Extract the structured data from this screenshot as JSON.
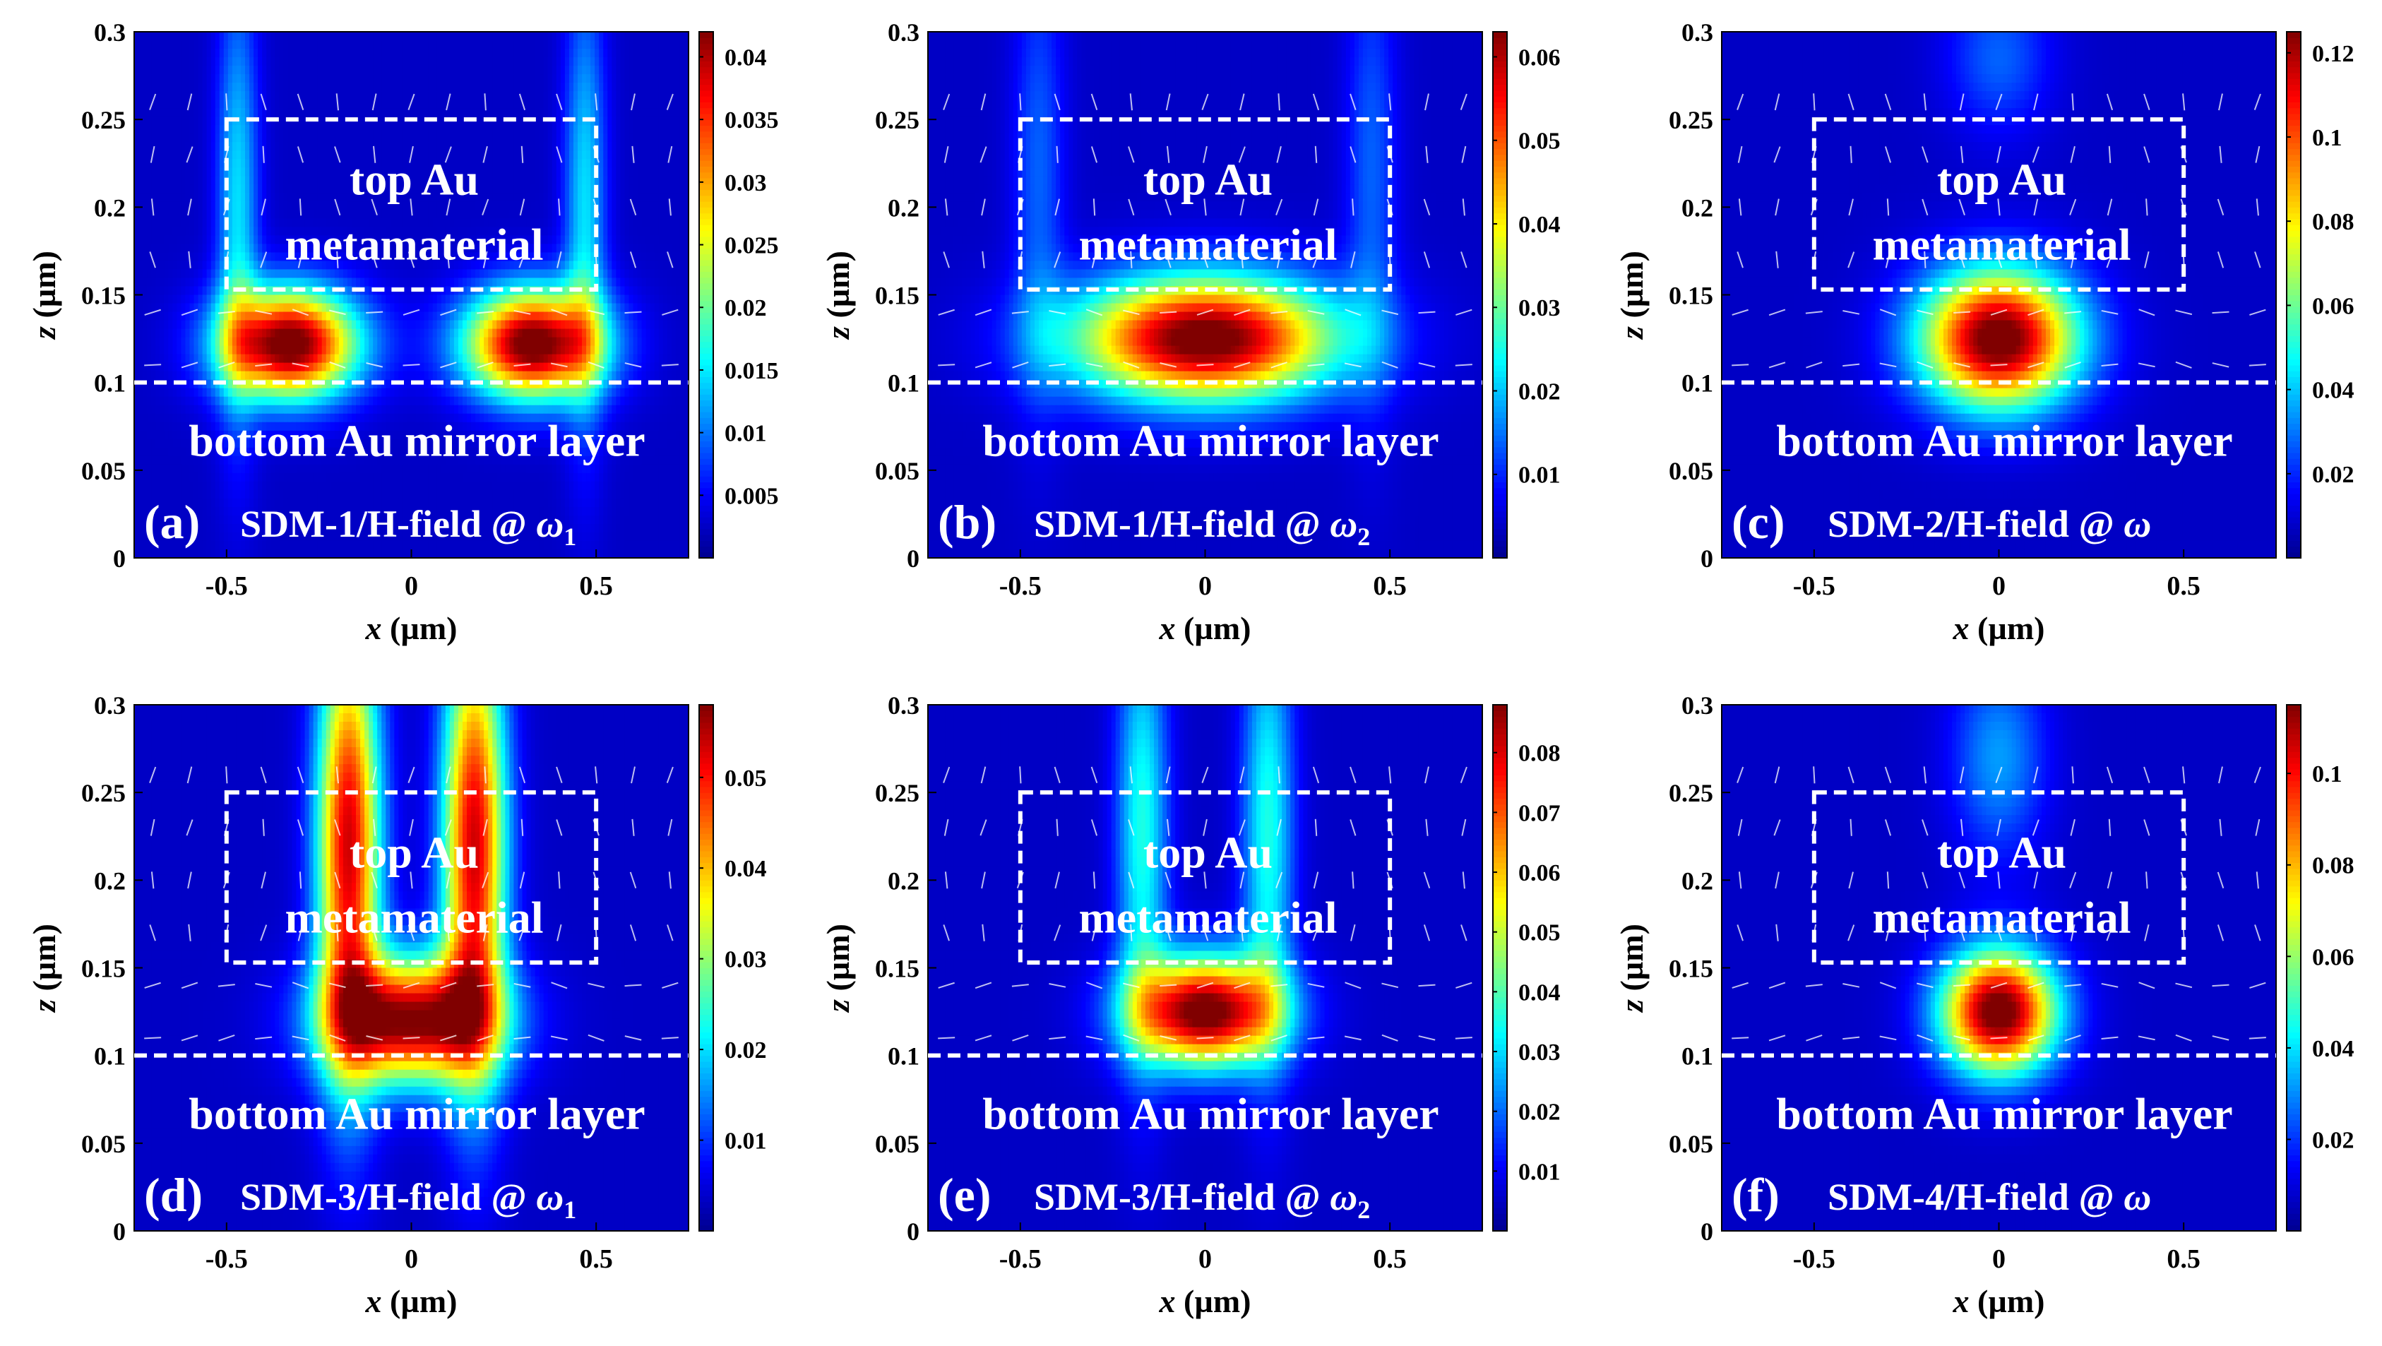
{
  "figure": {
    "colors": {
      "background": "#ffffff",
      "axis": "#000000",
      "overlay": "#ffffff",
      "colormap": [
        "#00008f",
        "#0000ff",
        "#0080ff",
        "#00ffff",
        "#80ff80",
        "#ffff00",
        "#ff8000",
        "#ff0000",
        "#800000"
      ]
    },
    "layer_labels": {
      "top": [
        "top Au",
        "metamaterial"
      ],
      "bottom": "bottom Au mirror layer"
    },
    "units": "(µm)"
  },
  "chart_data": [
    {
      "type": "heatmap",
      "panel": "(a)",
      "caption": "SDM-1/H-field @ ",
      "omega": "ω",
      "omega_sub": "1",
      "xlabel": "x",
      "ylabel": "z",
      "xlim": [
        -0.75,
        0.75
      ],
      "ylim": [
        0,
        0.3
      ],
      "xticks": [
        -0.5,
        0,
        0.5
      ],
      "xtick_labels": [
        "-0.5",
        "0",
        "0.5"
      ],
      "yticks": [
        0,
        0.05,
        0.1,
        0.15,
        0.2,
        0.25,
        0.3
      ],
      "ytick_labels": [
        "0",
        "0.05",
        "0.1",
        "0.15",
        "0.2",
        "0.25",
        "0.3"
      ],
      "colorbar": {
        "min": 0,
        "max": 0.042,
        "ticks": [
          0.005,
          0.01,
          0.015,
          0.02,
          0.025,
          0.03,
          0.035,
          0.04
        ],
        "tick_labels": [
          "0.005",
          "0.01",
          "0.015",
          "0.02",
          "0.025",
          "0.03",
          "0.035",
          "0.04"
        ]
      },
      "metamaterial_box": {
        "x": [
          -0.5,
          0.5
        ],
        "z": [
          0.153,
          0.25
        ]
      },
      "mirror_interface_z": 0.1,
      "hotspots": [
        {
          "x": -0.33,
          "z": 0.122,
          "sx": 0.13,
          "sz": 0.022,
          "amp": 0.042
        },
        {
          "x": 0.33,
          "z": 0.122,
          "sx": 0.13,
          "sz": 0.022,
          "amp": 0.042
        },
        {
          "x": -0.47,
          "z": 0.2,
          "sx": 0.04,
          "sz": 0.09,
          "amp": 0.012
        },
        {
          "x": 0.47,
          "z": 0.2,
          "sx": 0.04,
          "sz": 0.09,
          "amp": 0.012
        }
      ]
    },
    {
      "type": "heatmap",
      "panel": "(b)",
      "caption": "SDM-1/H-field @ ",
      "omega": "ω",
      "omega_sub": "2",
      "xlabel": "x",
      "ylabel": "z",
      "xlim": [
        -0.75,
        0.75
      ],
      "ylim": [
        0,
        0.3
      ],
      "xticks": [
        -0.5,
        0,
        0.5
      ],
      "xtick_labels": [
        "-0.5",
        "0",
        "0.5"
      ],
      "yticks": [
        0,
        0.05,
        0.1,
        0.15,
        0.2,
        0.25,
        0.3
      ],
      "ytick_labels": [
        "0",
        "0.05",
        "0.1",
        "0.15",
        "0.2",
        "0.25",
        "0.3"
      ],
      "colorbar": {
        "min": 0,
        "max": 0.063,
        "ticks": [
          0.01,
          0.02,
          0.03,
          0.04,
          0.05,
          0.06
        ],
        "tick_labels": [
          "0.01",
          "0.02",
          "0.03",
          "0.04",
          "0.05",
          "0.06"
        ]
      },
      "metamaterial_box": {
        "x": [
          -0.5,
          0.5
        ],
        "z": [
          0.153,
          0.25
        ]
      },
      "mirror_interface_z": 0.1,
      "hotspots": [
        {
          "x": 0,
          "z": 0.125,
          "sx": 0.25,
          "sz": 0.025,
          "amp": 0.063
        },
        {
          "x": -0.45,
          "z": 0.22,
          "sx": 0.05,
          "sz": 0.09,
          "amp": 0.01
        },
        {
          "x": 0.45,
          "z": 0.22,
          "sx": 0.05,
          "sz": 0.09,
          "amp": 0.01
        }
      ]
    },
    {
      "type": "heatmap",
      "panel": "(c)",
      "caption": "SDM-2/H-field @ ",
      "omega": "ω",
      "omega_sub": "",
      "xlabel": "x",
      "ylabel": "z",
      "xlim": [
        -0.75,
        0.75
      ],
      "ylim": [
        0,
        0.3
      ],
      "xticks": [
        -0.5,
        0,
        0.5
      ],
      "xtick_labels": [
        "-0.5",
        "0",
        "0.5"
      ],
      "yticks": [
        0,
        0.05,
        0.1,
        0.15,
        0.2,
        0.25,
        0.3
      ],
      "ytick_labels": [
        "0",
        "0.05",
        "0.1",
        "0.15",
        "0.2",
        "0.25",
        "0.3"
      ],
      "colorbar": {
        "min": 0,
        "max": 0.125,
        "ticks": [
          0.02,
          0.04,
          0.06,
          0.08,
          0.1,
          0.12
        ],
        "tick_labels": [
          "0.02",
          "0.04",
          "0.06",
          "0.08",
          "0.1",
          "0.12"
        ]
      },
      "metamaterial_box": {
        "x": [
          -0.5,
          0.5
        ],
        "z": [
          0.153,
          0.25
        ]
      },
      "mirror_interface_z": 0.1,
      "hotspots": [
        {
          "x": 0,
          "z": 0.125,
          "sx": 0.15,
          "sz": 0.028,
          "amp": 0.125
        },
        {
          "x": 0,
          "z": 0.285,
          "sx": 0.1,
          "sz": 0.03,
          "amp": 0.02
        }
      ]
    },
    {
      "type": "heatmap",
      "panel": "(d)",
      "caption": "SDM-3/H-field @ ",
      "omega": "ω",
      "omega_sub": "1",
      "xlabel": "x",
      "ylabel": "z",
      "xlim": [
        -0.75,
        0.75
      ],
      "ylim": [
        0,
        0.3
      ],
      "xticks": [
        -0.5,
        0,
        0.5
      ],
      "xtick_labels": [
        "-0.5",
        "0",
        "0.5"
      ],
      "yticks": [
        0,
        0.05,
        0.1,
        0.15,
        0.2,
        0.25,
        0.3
      ],
      "ytick_labels": [
        "0",
        "0.05",
        "0.1",
        "0.15",
        "0.2",
        "0.25",
        "0.3"
      ],
      "colorbar": {
        "min": 0,
        "max": 0.058,
        "ticks": [
          0.01,
          0.02,
          0.03,
          0.04,
          0.05
        ],
        "tick_labels": [
          "0.01",
          "0.02",
          "0.03",
          "0.04",
          "0.05"
        ]
      },
      "metamaterial_box": {
        "x": [
          -0.5,
          0.5
        ],
        "z": [
          0.153,
          0.25
        ]
      },
      "mirror_interface_z": 0.1,
      "hotspots": [
        {
          "x": 0,
          "z": 0.12,
          "sx": 0.16,
          "sz": 0.025,
          "amp": 0.055
        },
        {
          "x": -0.17,
          "z": 0.22,
          "sx": 0.06,
          "sz": 0.09,
          "amp": 0.05
        },
        {
          "x": 0.17,
          "z": 0.22,
          "sx": 0.06,
          "sz": 0.09,
          "amp": 0.05
        }
      ]
    },
    {
      "type": "heatmap",
      "panel": "(e)",
      "caption": "SDM-3/H-field @ ",
      "omega": "ω",
      "omega_sub": "2",
      "xlabel": "x",
      "ylabel": "z",
      "xlim": [
        -0.75,
        0.75
      ],
      "ylim": [
        0,
        0.3
      ],
      "xticks": [
        -0.5,
        0,
        0.5
      ],
      "xtick_labels": [
        "-0.5",
        "0",
        "0.5"
      ],
      "yticks": [
        0,
        0.05,
        0.1,
        0.15,
        0.2,
        0.25,
        0.3
      ],
      "ytick_labels": [
        "0",
        "0.05",
        "0.1",
        "0.15",
        "0.2",
        "0.25",
        "0.3"
      ],
      "colorbar": {
        "min": 0,
        "max": 0.088,
        "ticks": [
          0.01,
          0.02,
          0.03,
          0.04,
          0.05,
          0.06,
          0.07,
          0.08
        ],
        "tick_labels": [
          "0.01",
          "0.02",
          "0.03",
          "0.04",
          "0.05",
          "0.06",
          "0.07",
          "0.08"
        ]
      },
      "metamaterial_box": {
        "x": [
          -0.5,
          0.5
        ],
        "z": [
          0.153,
          0.25
        ]
      },
      "mirror_interface_z": 0.1,
      "hotspots": [
        {
          "x": 0,
          "z": 0.125,
          "sx": 0.14,
          "sz": 0.022,
          "amp": 0.088
        },
        {
          "x": -0.17,
          "z": 0.23,
          "sx": 0.05,
          "sz": 0.09,
          "amp": 0.03
        },
        {
          "x": 0.17,
          "z": 0.23,
          "sx": 0.05,
          "sz": 0.09,
          "amp": 0.03
        }
      ]
    },
    {
      "type": "heatmap",
      "panel": "(f)",
      "caption": "SDM-4/H-field @ ",
      "omega": "ω",
      "omega_sub": "",
      "xlabel": "x",
      "ylabel": "z",
      "xlim": [
        -0.75,
        0.75
      ],
      "ylim": [
        0,
        0.3
      ],
      "xticks": [
        -0.5,
        0,
        0.5
      ],
      "xtick_labels": [
        "-0.5",
        "0",
        "0.5"
      ],
      "yticks": [
        0,
        0.05,
        0.1,
        0.15,
        0.2,
        0.25,
        0.3
      ],
      "ytick_labels": [
        "0",
        "0.05",
        "0.1",
        "0.15",
        "0.2",
        "0.25",
        "0.3"
      ],
      "colorbar": {
        "min": 0,
        "max": 0.115,
        "ticks": [
          0.02,
          0.04,
          0.06,
          0.08,
          0.1
        ],
        "tick_labels": [
          "0.02",
          "0.04",
          "0.06",
          "0.08",
          "0.1"
        ]
      },
      "metamaterial_box": {
        "x": [
          -0.5,
          0.5
        ],
        "z": [
          0.153,
          0.25
        ]
      },
      "mirror_interface_z": 0.1,
      "hotspots": [
        {
          "x": 0,
          "z": 0.125,
          "sx": 0.11,
          "sz": 0.025,
          "amp": 0.115
        },
        {
          "x": 0,
          "z": 0.27,
          "sx": 0.09,
          "sz": 0.04,
          "amp": 0.025
        }
      ]
    }
  ]
}
